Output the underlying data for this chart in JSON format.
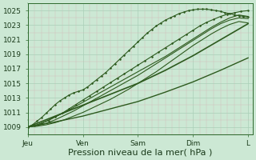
{
  "bg_color": "#cce8d4",
  "grid_color_major": "#aacfb8",
  "grid_color_minor": "#d4b8b8",
  "line_color": "#2d5a1e",
  "marker_color": "#2d5a1e",
  "xlabel": "Pression niveau de la mer( hPa )",
  "xlabel_fontsize": 8,
  "ytick_labels": [
    "1009",
    "1011",
    "1013",
    "1015",
    "1017",
    "1019",
    "1021",
    "1023",
    "1025"
  ],
  "ytick_values": [
    1009,
    1011,
    1013,
    1015,
    1017,
    1019,
    1021,
    1023,
    1025
  ],
  "ylim": [
    1008.0,
    1026.0
  ],
  "xtick_labels": [
    "Jeu",
    "Ven",
    "Sam",
    "Dim",
    "L"
  ],
  "xtick_positions": [
    0,
    24,
    48,
    72,
    96
  ],
  "xlim": [
    0,
    98
  ],
  "lines": [
    {
      "x": [
        0,
        2,
        4,
        6,
        8,
        10,
        12,
        14,
        16,
        18,
        20,
        22,
        24,
        26,
        28,
        30,
        32,
        34,
        36,
        38,
        40,
        42,
        44,
        46,
        48,
        50,
        52,
        54,
        56,
        58,
        60,
        62,
        64,
        66,
        68,
        70,
        72,
        74,
        76,
        78,
        80,
        82,
        84,
        86,
        88,
        90,
        92,
        94,
        96
      ],
      "y": [
        1009,
        1009.3,
        1009.8,
        1010.3,
        1010.9,
        1011.5,
        1012.1,
        1012.6,
        1013.0,
        1013.4,
        1013.7,
        1013.9,
        1014.1,
        1014.5,
        1015.0,
        1015.5,
        1016.0,
        1016.5,
        1017.1,
        1017.7,
        1018.3,
        1018.9,
        1019.5,
        1020.1,
        1020.7,
        1021.3,
        1021.9,
        1022.4,
        1022.9,
        1023.3,
        1023.7,
        1024.0,
        1024.3,
        1024.6,
        1024.8,
        1025.0,
        1025.1,
        1025.2,
        1025.2,
        1025.2,
        1025.1,
        1025.0,
        1024.9,
        1024.7,
        1024.6,
        1024.4,
        1024.3,
        1024.2,
        1024.1
      ],
      "linewidth": 0.8,
      "marker": ".",
      "markersize": 2.5
    },
    {
      "x": [
        0,
        3,
        6,
        9,
        12,
        15,
        18,
        21,
        24,
        27,
        30,
        33,
        36,
        39,
        42,
        45,
        48,
        51,
        54,
        57,
        60,
        63,
        66,
        69,
        72,
        75,
        78,
        81,
        84,
        87,
        90,
        93,
        96
      ],
      "y": [
        1009,
        1009.2,
        1009.5,
        1009.9,
        1010.4,
        1010.9,
        1011.5,
        1012.1,
        1012.7,
        1013.3,
        1013.9,
        1014.5,
        1015.1,
        1015.7,
        1016.3,
        1016.9,
        1017.5,
        1018.1,
        1018.7,
        1019.3,
        1019.9,
        1020.5,
        1021.1,
        1021.7,
        1022.3,
        1022.9,
        1023.4,
        1023.8,
        1024.2,
        1024.5,
        1024.7,
        1024.9,
        1025.0
      ],
      "linewidth": 0.8,
      "marker": ".",
      "markersize": 2.5
    },
    {
      "x": [
        0,
        4,
        8,
        12,
        16,
        20,
        24,
        28,
        32,
        36,
        40,
        44,
        48,
        52,
        56,
        60,
        64,
        68,
        72,
        76,
        80,
        84,
        88,
        92,
        96
      ],
      "y": [
        1009,
        1009.3,
        1009.8,
        1010.4,
        1011.0,
        1011.7,
        1012.4,
        1013.1,
        1013.8,
        1014.5,
        1015.2,
        1015.9,
        1016.6,
        1017.3,
        1018.0,
        1018.7,
        1019.5,
        1020.3,
        1021.1,
        1021.9,
        1022.7,
        1023.4,
        1024.0,
        1024.4,
        1024.2
      ],
      "linewidth": 0.8,
      "marker": null
    },
    {
      "x": [
        0,
        4,
        8,
        12,
        16,
        20,
        24,
        28,
        32,
        36,
        40,
        44,
        48,
        52,
        56,
        60,
        64,
        68,
        72,
        76,
        80,
        84,
        88,
        92,
        96
      ],
      "y": [
        1009,
        1009.2,
        1009.5,
        1010.0,
        1010.6,
        1011.2,
        1011.9,
        1012.6,
        1013.3,
        1014.0,
        1014.7,
        1015.4,
        1016.1,
        1016.9,
        1017.7,
        1018.5,
        1019.3,
        1020.1,
        1020.9,
        1021.7,
        1022.5,
        1023.2,
        1023.7,
        1024.0,
        1023.9
      ],
      "linewidth": 0.8,
      "marker": null
    },
    {
      "x": [
        0,
        4,
        8,
        12,
        16,
        20,
        24,
        28,
        32,
        36,
        40,
        44,
        48,
        52,
        56,
        60,
        64,
        68,
        72,
        76,
        80,
        84,
        88,
        92,
        96
      ],
      "y": [
        1009,
        1009.1,
        1009.3,
        1009.6,
        1010.0,
        1010.5,
        1011.0,
        1011.6,
        1012.2,
        1012.8,
        1013.5,
        1014.2,
        1015.0,
        1015.8,
        1016.6,
        1017.5,
        1018.4,
        1019.3,
        1020.2,
        1021.0,
        1021.8,
        1022.5,
        1023.1,
        1023.5,
        1023.3
      ],
      "linewidth": 0.8,
      "marker": null
    },
    {
      "x": [
        0,
        12,
        24,
        36,
        48,
        60,
        72,
        84,
        96
      ],
      "y": [
        1009,
        1010.5,
        1012.0,
        1013.5,
        1015.0,
        1016.8,
        1018.8,
        1021.0,
        1023.2
      ],
      "linewidth": 1.2,
      "marker": null
    },
    {
      "x": [
        0,
        12,
        24,
        36,
        48,
        60,
        72,
        84,
        96
      ],
      "y": [
        1009,
        1009.7,
        1010.5,
        1011.5,
        1012.5,
        1013.8,
        1015.2,
        1016.8,
        1018.5
      ],
      "linewidth": 1.0,
      "marker": null
    }
  ]
}
